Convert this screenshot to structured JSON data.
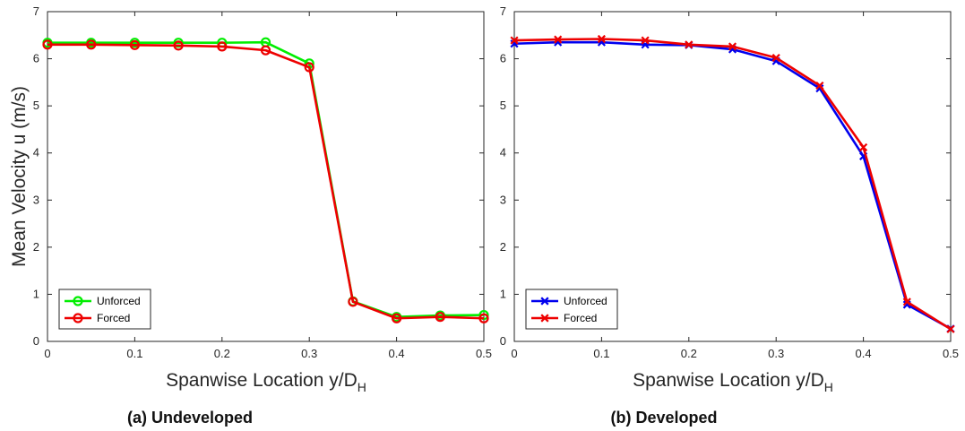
{
  "chart_data": [
    {
      "type": "line",
      "caption": "(a) Undeveloped",
      "xlabel": "Spanwise Location y/D",
      "xlabel_sub": "H",
      "ylabel": "Mean Velocity u (m/s)",
      "xlim": [
        0,
        0.5
      ],
      "ylim": [
        0,
        7
      ],
      "xticks": [
        "0",
        "0.1",
        "0.2",
        "0.3",
        "0.4",
        "0.5"
      ],
      "yticks": [
        "0",
        "1",
        "2",
        "3",
        "4",
        "5",
        "6",
        "7"
      ],
      "legend_position": "bottom-left",
      "x": [
        0,
        0.05,
        0.1,
        0.15,
        0.2,
        0.25,
        0.3,
        0.35,
        0.4,
        0.45,
        0.5
      ],
      "series": [
        {
          "name": "Unforced",
          "color": "#00ee00",
          "marker": "circle",
          "values": [
            6.34,
            6.34,
            6.34,
            6.34,
            6.34,
            6.35,
            5.9,
            0.85,
            0.52,
            0.55,
            0.56
          ]
        },
        {
          "name": "Forced",
          "color": "#ee0000",
          "marker": "circle",
          "values": [
            6.3,
            6.3,
            6.29,
            6.28,
            6.26,
            6.18,
            5.82,
            0.84,
            0.49,
            0.52,
            0.49
          ]
        }
      ]
    },
    {
      "type": "line",
      "caption": "(b) Developed",
      "xlabel": "Spanwise Location y/D",
      "xlabel_sub": "H",
      "ylabel": "",
      "xlim": [
        0,
        0.5
      ],
      "ylim": [
        0,
        7
      ],
      "xticks": [
        "0",
        "0.1",
        "0.2",
        "0.3",
        "0.4",
        "0.5"
      ],
      "yticks": [
        "0",
        "1",
        "2",
        "3",
        "4",
        "5",
        "6",
        "7"
      ],
      "legend_position": "bottom-left",
      "x": [
        0,
        0.05,
        0.1,
        0.15,
        0.2,
        0.25,
        0.3,
        0.35,
        0.4,
        0.45,
        0.5
      ],
      "series": [
        {
          "name": "Unforced",
          "color": "#0000ee",
          "marker": "x",
          "values": [
            6.32,
            6.35,
            6.35,
            6.3,
            6.29,
            6.2,
            5.95,
            5.37,
            3.93,
            0.78,
            0.27
          ]
        },
        {
          "name": "Forced",
          "color": "#ee0000",
          "marker": "x",
          "values": [
            6.39,
            6.41,
            6.42,
            6.39,
            6.3,
            6.26,
            6.02,
            5.43,
            4.12,
            0.84,
            0.26
          ]
        }
      ]
    }
  ]
}
